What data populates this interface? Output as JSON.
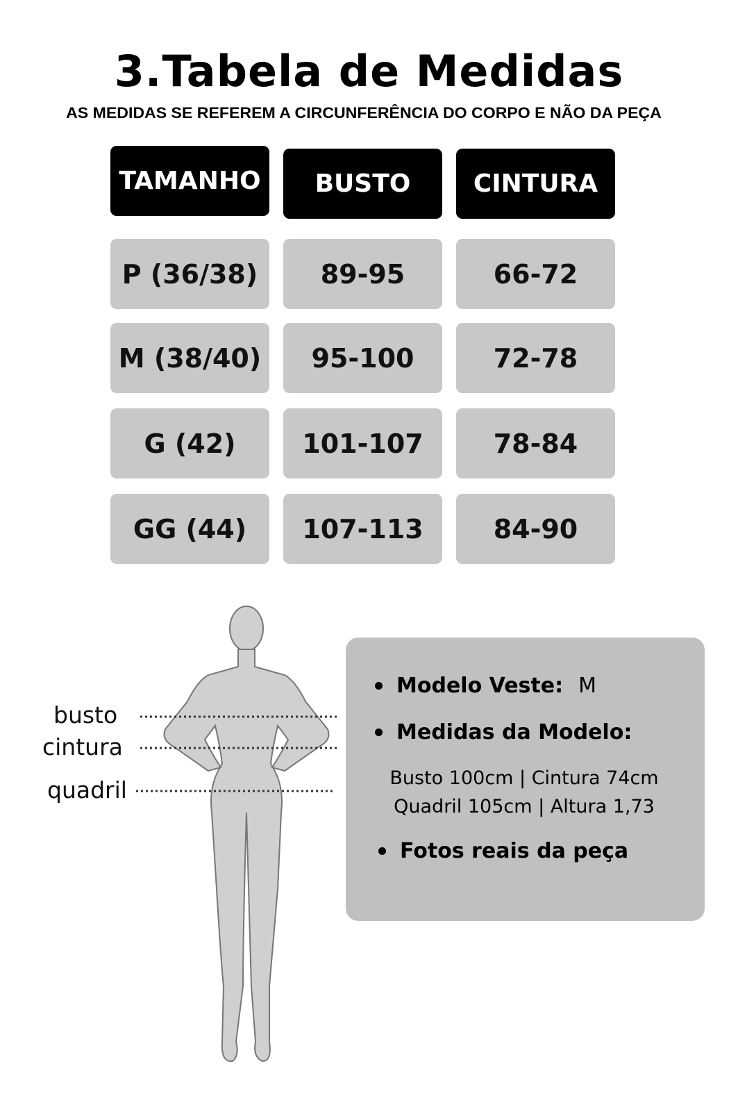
{
  "title": "3.Tabela de Medidas",
  "subtitle": "AS MEDIDAS SE REFEREM A CIRCUNFERÊNCIA DO CORPO E NÃO DA PEÇA",
  "table": {
    "headers": [
      "TAMANHO",
      "BUSTO",
      "CINTURA"
    ],
    "rows": [
      [
        "P (36/38)",
        "89-95",
        "66-72"
      ],
      [
        "M (38/40)",
        "95-100",
        "72-78"
      ],
      [
        "G (42)",
        "101-107",
        "78-84"
      ],
      [
        "GG (44)",
        "107-113",
        "84-90"
      ]
    ]
  },
  "figure": {
    "labels": [
      "busto",
      "cintura",
      "quadril"
    ]
  },
  "info": {
    "modelo_veste_label": "Modelo Veste:",
    "modelo_veste_value": "M",
    "medidas_label": "Medidas da Modelo:",
    "medidas_line1": "Busto 100cm | Cintura 74cm",
    "medidas_line2": "Quadril 105cm | Altura 1,73",
    "fotos": "Fotos reais da peça"
  },
  "colors": {
    "header_bg": "#000000",
    "cell_bg": "#c8c8c8",
    "box_bg": "#c0c0c0"
  }
}
